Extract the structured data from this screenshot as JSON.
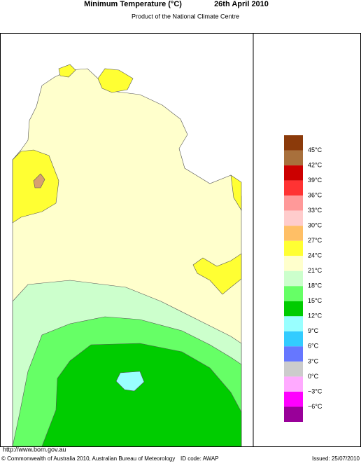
{
  "header": {
    "title": "Minimum Temperature (°C)",
    "date": "26th April 2010",
    "subtitle": "Product of the National Climate Centre"
  },
  "legend": {
    "colors": [
      "#8b3a0a",
      "#a8703c",
      "#cc0000",
      "#ff3333",
      "#ff9999",
      "#ffcccc",
      "#ffbf66",
      "#ffff33",
      "#ffffcc",
      "#ccffcc",
      "#66ff66",
      "#00cc00",
      "#99ffff",
      "#33ccff",
      "#6677ff",
      "#cccccc",
      "#ffaaff",
      "#ff00ff",
      "#990099"
    ],
    "labels": [
      "45°C",
      "42°C",
      "39°C",
      "36°C",
      "33°C",
      "30°C",
      "27°C",
      "24°C",
      "21°C",
      "18°C",
      "15°C",
      "12°C",
      "9°C",
      "6°C",
      "3°C",
      "0°C",
      "−3°C",
      "−6°C"
    ]
  },
  "footer": {
    "url": "http://www.bom.gov.au",
    "copyright": "© Commonwealth of Australia 2010, Australian Bureau of Meteorology",
    "id_code": "ID code: AWAP",
    "issued": "Issued: 25/07/2010"
  }
}
